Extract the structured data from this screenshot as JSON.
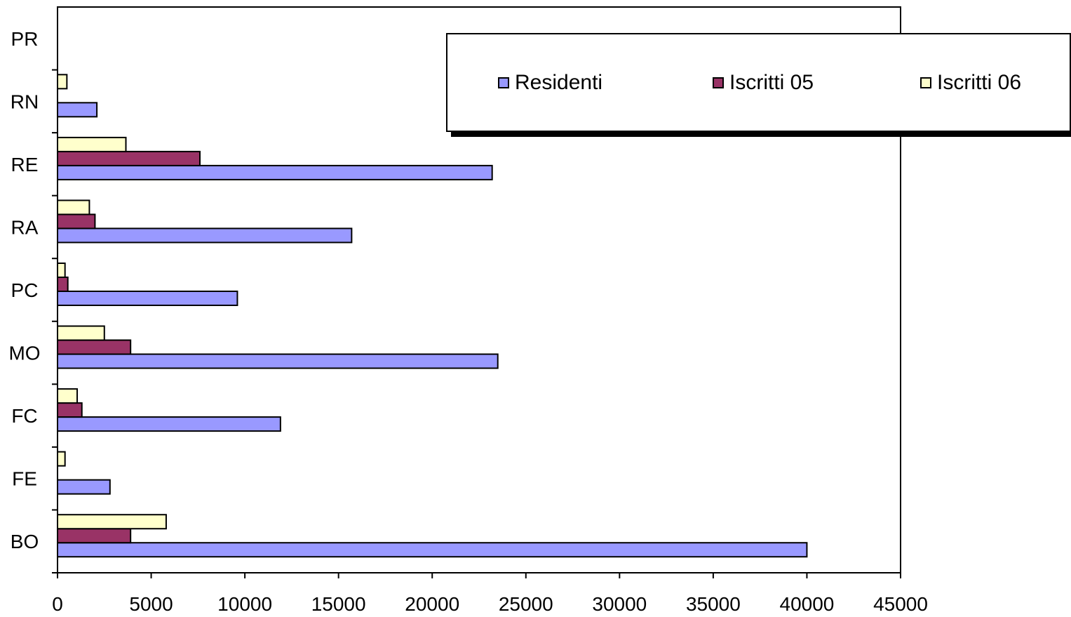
{
  "chart_data": {
    "type": "bar",
    "orientation": "horizontal",
    "categories": [
      "BO",
      "FE",
      "FC",
      "MO",
      "PC",
      "RA",
      "RE",
      "RN",
      "PR"
    ],
    "series": [
      {
        "name": "Residenti",
        "color": "#9999ff",
        "values": [
          40000,
          2800,
          11900,
          23500,
          9600,
          15700,
          23200,
          2100,
          0
        ]
      },
      {
        "name": "Iscritti 05",
        "color": "#993366",
        "values": [
          3900,
          0,
          1300,
          3900,
          550,
          2000,
          7600,
          0,
          0
        ]
      },
      {
        "name": "Iscritti 06",
        "color": "#ffffcc",
        "values": [
          5800,
          400,
          1050,
          2500,
          400,
          1700,
          3650,
          500,
          0
        ]
      }
    ],
    "xlim": [
      0,
      45000
    ],
    "xticks": [
      0,
      5000,
      10000,
      15000,
      20000,
      25000,
      30000,
      35000,
      40000,
      45000
    ],
    "grid": false,
    "legend_position": "top-right",
    "title": "",
    "xlabel": "",
    "ylabel": ""
  }
}
